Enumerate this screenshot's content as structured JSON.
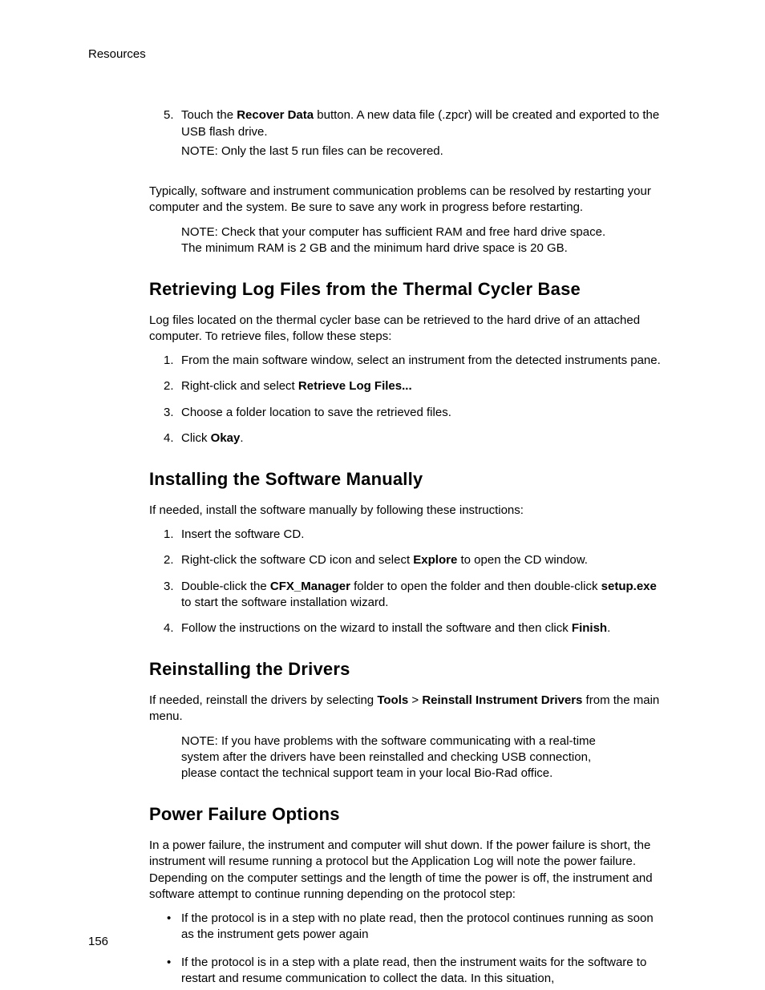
{
  "header": "Resources",
  "page_number": "156",
  "step5": {
    "marker": "5.",
    "pre": "Touch the ",
    "bold": "Recover Data",
    "post": " button. A new data file (.zpcr) will be created and exported to the USB flash drive.",
    "note": "NOTE: Only the last 5 run files can be recovered."
  },
  "intro_para": "Typically, software and instrument communication problems can be resolved by restarting your computer and the system. Be sure to save any work in progress before restarting.",
  "intro_note": "NOTE: Check that your computer has sufficient RAM and free hard drive space. The minimum RAM is 2 GB and the minimum hard drive space is 20 GB.",
  "sec_log": {
    "title": "Retrieving Log Files from the Thermal Cycler Base",
    "intro": "Log files located on the thermal cycler base can be retrieved to the hard drive of an attached computer. To retrieve files, follow these steps:",
    "items": [
      {
        "marker": "1.",
        "text": "From the main software window, select an instrument from the detected instruments pane."
      },
      {
        "marker": "2.",
        "pre": "Right-click and select ",
        "bold": "Retrieve Log Files..."
      },
      {
        "marker": "3.",
        "text": "Choose a folder location to save the retrieved files."
      },
      {
        "marker": "4.",
        "pre": "Click ",
        "bold": "Okay",
        "post": "."
      }
    ]
  },
  "sec_install": {
    "title": "Installing the Software Manually",
    "intro": "If needed, install the software manually by following these instructions:",
    "items": [
      {
        "marker": "1.",
        "text": "Insert the software CD."
      },
      {
        "marker": "2.",
        "pre": "Right-click the software CD icon and select ",
        "bold": "Explore",
        "post": " to open the CD window."
      },
      {
        "marker": "3.",
        "pre": "Double-click the ",
        "bold": "CFX_Manager",
        "mid": " folder to open the folder and then double-click ",
        "bold2": "setup.exe",
        "post": " to start the software installation wizard."
      },
      {
        "marker": "4.",
        "pre": "Follow the instructions on the wizard to install the software and then click ",
        "bold": "Finish",
        "post": "."
      }
    ]
  },
  "sec_drivers": {
    "title": "Reinstalling the Drivers",
    "intro_pre": "If needed, reinstall the drivers by selecting ",
    "intro_b1": "Tools",
    "intro_sep": " > ",
    "intro_b2": "Reinstall Instrument Drivers",
    "intro_post": " from the main menu.",
    "note": "NOTE: If you have problems with the software communicating with a real-time system after the drivers have been reinstalled and checking USB connection, please contact the technical support team in your local Bio-Rad office."
  },
  "sec_power": {
    "title": "Power Failure Options",
    "intro": "In a power failure, the instrument and computer will shut down. If the power failure is short, the instrument will resume running a protocol but the Application Log will note the power failure. Depending on the computer settings and the length of time the power is off, the instrument and software attempt to continue running depending on the protocol step:",
    "bullets": [
      {
        "marker": "•",
        "text": "If the protocol is in a step with no plate read, then the protocol continues running as soon as the instrument gets power again"
      },
      {
        "marker": "•",
        "text": "If the protocol is in a step with a plate read, then the instrument waits for the software to restart and resume communication to collect the data. In this situation,"
      }
    ]
  }
}
